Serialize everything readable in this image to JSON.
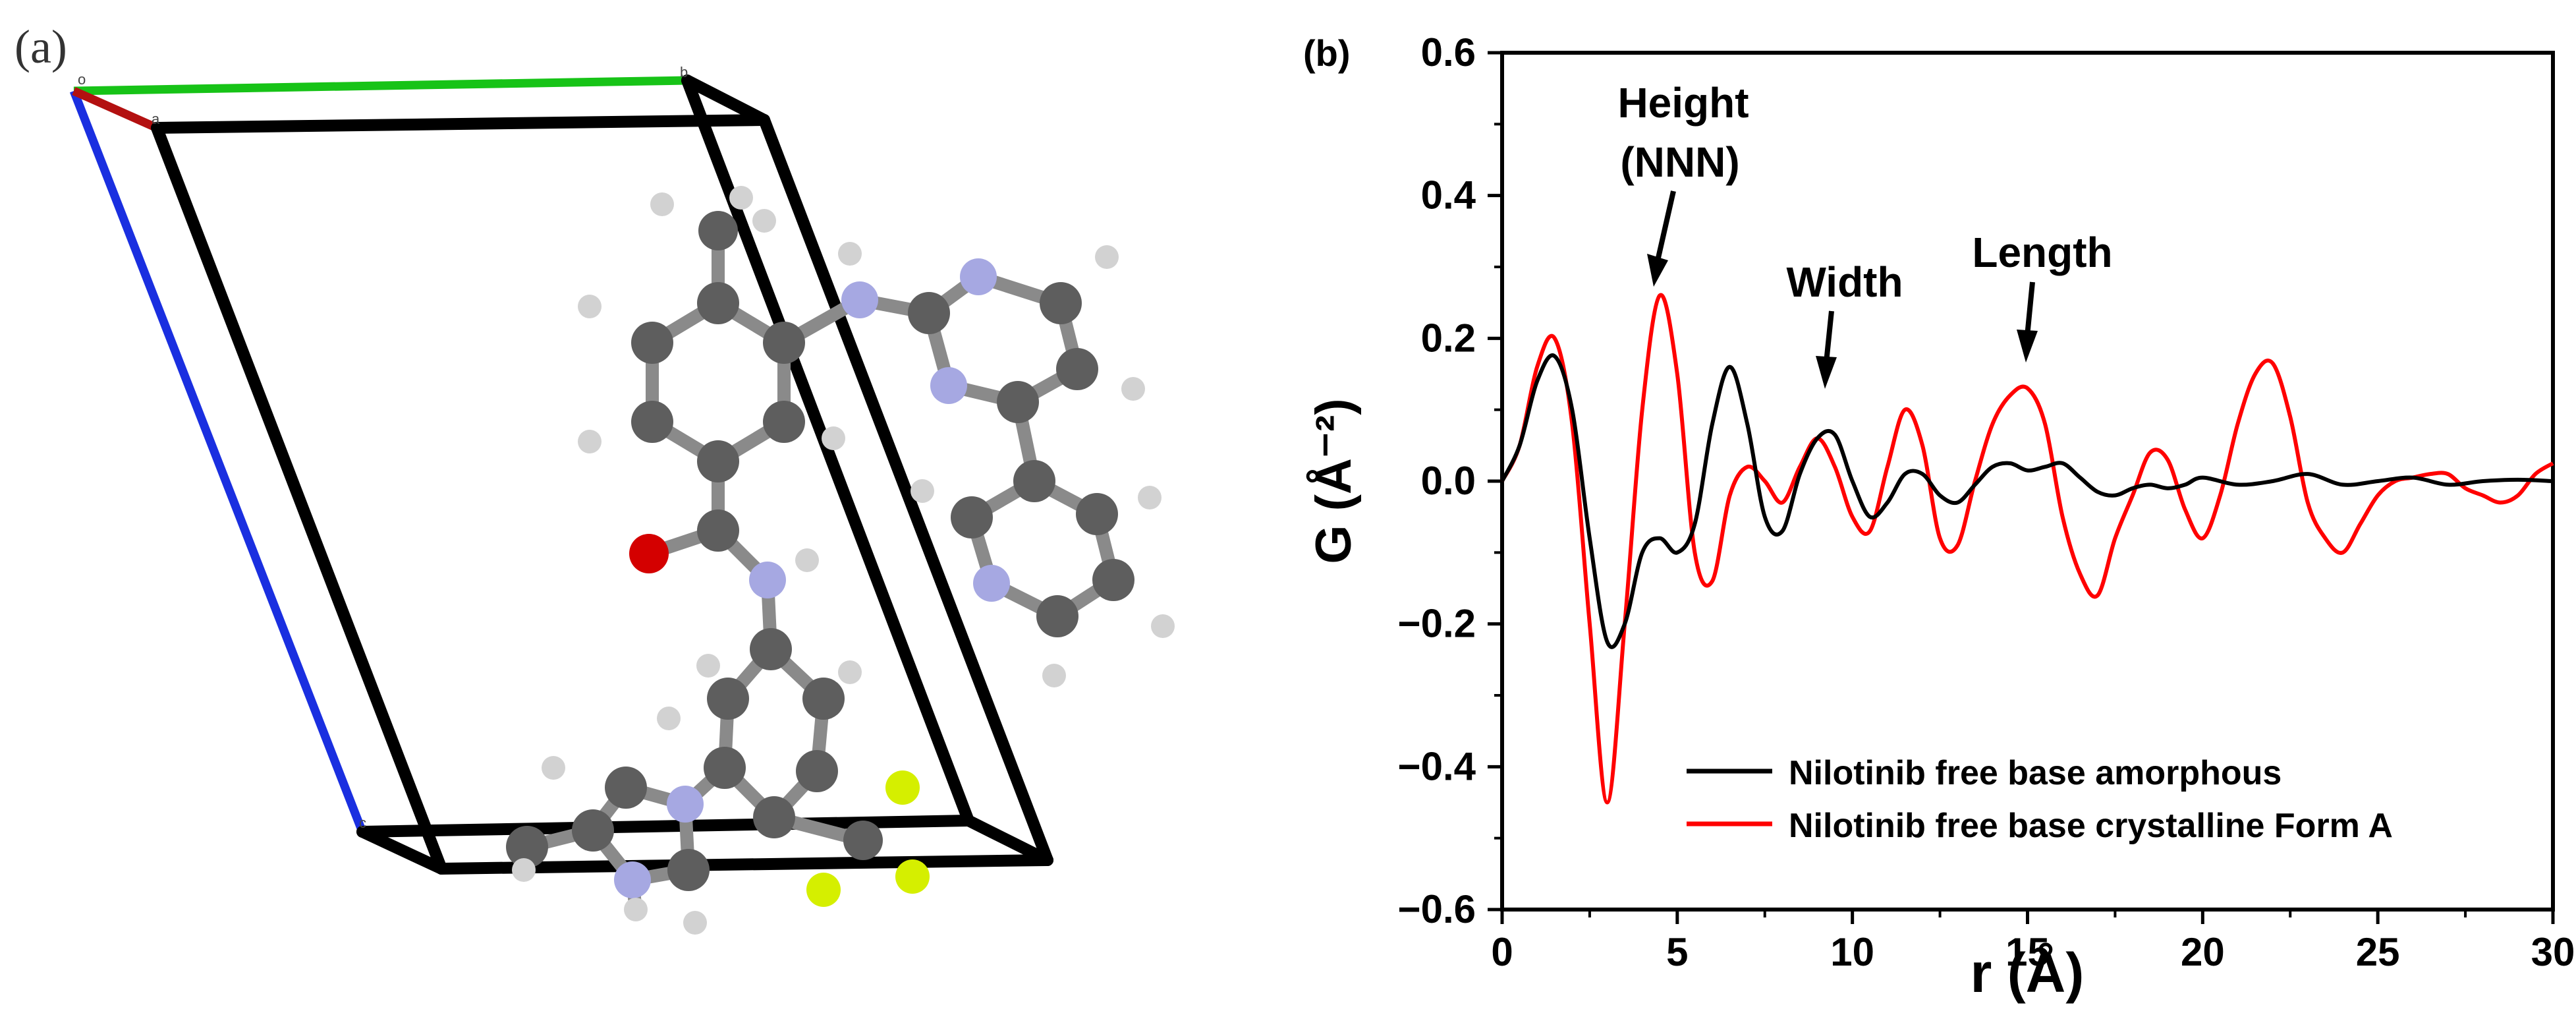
{
  "panel_a": {
    "label": "(a)",
    "cell_axis_labels": [
      "o",
      "a",
      "b",
      "c"
    ],
    "colors": {
      "a_axis": "#b31010",
      "b_axis": "#17c317",
      "c_axis": "#1a2fe0",
      "carbon": "#5e5e5e",
      "hydrogen": "#d2d2d2",
      "nitrogen": "#a6a8e2",
      "oxygen": "#d40000",
      "fluorine": "#d5ef00",
      "cell": "#000000"
    }
  },
  "panel_b": {
    "label": "(b)",
    "annotations": {
      "height_line1": "Height",
      "height_line2": "(NNN)",
      "width": "Width",
      "length": "Length"
    }
  },
  "chart_data": {
    "type": "line",
    "title": "",
    "xlabel": "r (Å)",
    "ylabel": "G (Å⁻²)",
    "xlim": [
      0,
      30
    ],
    "ylim": [
      -0.6,
      0.6
    ],
    "x_ticks": [
      0,
      5,
      10,
      15,
      20,
      25,
      30
    ],
    "x_tick_labels": [
      "0",
      "5",
      "10",
      "15",
      "20",
      "25",
      "30"
    ],
    "y_ticks": [
      -0.6,
      -0.4,
      -0.2,
      0.0,
      0.2,
      0.4,
      0.6
    ],
    "y_tick_labels": [
      "−0.6",
      "−0.4",
      "−0.2",
      "0.0",
      "0.2",
      "0.4",
      "0.6"
    ],
    "legend_position": "bottom-right",
    "series": [
      {
        "name": "Nilotinib free base amorphous",
        "color": "#000000",
        "x": [
          0,
          0.5,
          1.0,
          1.5,
          2.0,
          2.5,
          3.0,
          3.5,
          4.0,
          4.5,
          5.0,
          5.5,
          6.0,
          6.5,
          7.0,
          7.5,
          8.0,
          8.5,
          9.0,
          9.5,
          10.0,
          10.5,
          11.0,
          11.5,
          12.0,
          12.5,
          13.0,
          13.5,
          14.0,
          14.5,
          15.0,
          15.5,
          16.0,
          16.5,
          17.0,
          17.5,
          18.0,
          18.5,
          19.0,
          19.5,
          20.0,
          21.0,
          22.0,
          23.0,
          24.0,
          25.0,
          26.0,
          27.0,
          28.0,
          29.0,
          30.0
        ],
        "y": [
          0.0,
          0.05,
          0.14,
          0.175,
          0.1,
          -0.08,
          -0.225,
          -0.2,
          -0.1,
          -0.08,
          -0.1,
          -0.06,
          0.08,
          0.16,
          0.08,
          -0.05,
          -0.07,
          0.01,
          0.06,
          0.065,
          0.0,
          -0.05,
          -0.03,
          0.01,
          0.01,
          -0.02,
          -0.03,
          -0.005,
          0.02,
          0.025,
          0.015,
          0.02,
          0.025,
          0.005,
          -0.015,
          -0.02,
          -0.01,
          -0.005,
          -0.01,
          -0.005,
          0.005,
          -0.005,
          0.0,
          0.01,
          -0.005,
          0.0,
          0.005,
          -0.005,
          0.0,
          0.002,
          0.0
        ]
      },
      {
        "name": "Nilotinib free base crystalline Form A",
        "color": "#ff0000",
        "x": [
          0,
          0.5,
          1.0,
          1.5,
          2.0,
          2.5,
          3.0,
          3.5,
          4.0,
          4.5,
          5.0,
          5.5,
          6.0,
          6.5,
          7.0,
          7.5,
          8.0,
          8.5,
          9.0,
          9.5,
          10.0,
          10.5,
          11.0,
          11.5,
          12.0,
          12.5,
          13.0,
          13.5,
          14.0,
          14.5,
          15.0,
          15.5,
          16.0,
          16.5,
          17.0,
          17.5,
          18.0,
          18.5,
          19.0,
          19.5,
          20.0,
          20.5,
          21.0,
          21.5,
          22.0,
          22.5,
          23.0,
          23.5,
          24.0,
          24.5,
          25.0,
          25.5,
          26.0,
          26.5,
          27.0,
          27.5,
          28.0,
          28.5,
          29.0,
          29.5,
          30.0
        ],
        "y": [
          0.0,
          0.05,
          0.16,
          0.2,
          0.08,
          -0.2,
          -0.45,
          -0.2,
          0.1,
          0.26,
          0.15,
          -0.1,
          -0.14,
          -0.02,
          0.02,
          0.0,
          -0.03,
          0.02,
          0.06,
          0.02,
          -0.05,
          -0.07,
          0.02,
          0.1,
          0.05,
          -0.08,
          -0.09,
          0.0,
          0.08,
          0.12,
          0.13,
          0.08,
          -0.05,
          -0.13,
          -0.16,
          -0.08,
          -0.02,
          0.04,
          0.03,
          -0.04,
          -0.08,
          -0.02,
          0.08,
          0.15,
          0.165,
          0.09,
          -0.03,
          -0.08,
          -0.1,
          -0.06,
          -0.02,
          0.0,
          0.005,
          0.01,
          0.01,
          -0.01,
          -0.02,
          -0.03,
          -0.02,
          0.01,
          0.025
        ]
      }
    ]
  }
}
